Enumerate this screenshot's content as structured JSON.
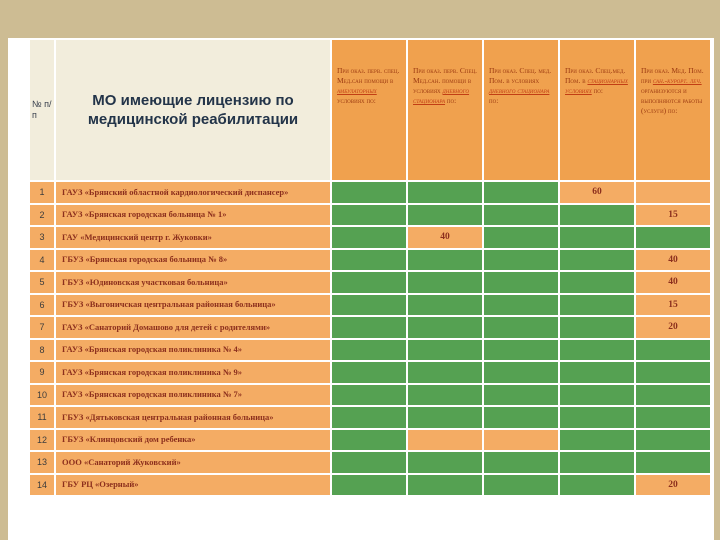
{
  "slide": {
    "num_header": "№ п/п",
    "title": "МО имеющие лицензию по медицинской реабилитации"
  },
  "colors": {
    "page_background": "#cdbc93",
    "panel": "#ffffff",
    "header_cream": "#f2eddc",
    "header_orange": "#f0a14e",
    "cell_orange": "#f4ac64",
    "cell_green": "#55a152",
    "header_text": "#9b3910",
    "header_link_text": "#c23e14",
    "org_text": "#8c2f1d",
    "title_text": "#233449"
  },
  "table": {
    "headers": [
      {
        "segments": [
          {
            "text": "При оказ. перв. спец. Мед.сан помощи в ",
            "link": false
          },
          {
            "text": "амбулаторных",
            "link": true
          },
          {
            "text": " условиях по:",
            "link": false
          }
        ]
      },
      {
        "segments": [
          {
            "text": "При оказ. перв. Спец. Мед.сан. помощи в условиях ",
            "link": false
          },
          {
            "text": "дневного стационара",
            "link": true
          },
          {
            "text": " по:",
            "link": false
          }
        ]
      },
      {
        "segments": [
          {
            "text": "При оказ. Спец. мед. Пом. в условиях ",
            "link": false
          },
          {
            "text": "дневного стационара",
            "link": true
          },
          {
            "text": " по:",
            "link": false
          }
        ]
      },
      {
        "segments": [
          {
            "text": "При оказ. Спец.мед. Пом. в ",
            "link": false
          },
          {
            "text": "стационарных условиях",
            "link": true
          },
          {
            "text": " по:",
            "link": false
          }
        ]
      },
      {
        "segments": [
          {
            "text": "При оказ. Мед. Пом. при ",
            "link": false
          },
          {
            "text": "сан.-курорт. леч.",
            "link": true
          },
          {
            "text": " организуются и выполняются работы (услуги) по:",
            "link": false
          }
        ]
      }
    ],
    "rows": [
      {
        "num": "1",
        "name": "ГАУЗ «Брянский областной кардиологический диспансер»",
        "cells": [
          {
            "bg": "green"
          },
          {
            "bg": "green"
          },
          {
            "bg": "green"
          },
          {
            "bg": "orange",
            "value": "60"
          },
          {
            "bg": "orange"
          }
        ]
      },
      {
        "num": "2",
        "name": "ГАУЗ «Брянская городская больница № 1»",
        "cells": [
          {
            "bg": "green"
          },
          {
            "bg": "green"
          },
          {
            "bg": "green"
          },
          {
            "bg": "green"
          },
          {
            "bg": "orange",
            "value": "15"
          }
        ]
      },
      {
        "num": "3",
        "name": "ГАУ «Медицинский центр г. Жуковки»",
        "cells": [
          {
            "bg": "green"
          },
          {
            "bg": "orange",
            "value": "40"
          },
          {
            "bg": "green"
          },
          {
            "bg": "green"
          },
          {
            "bg": "green"
          }
        ]
      },
      {
        "num": "4",
        "name": "ГБУЗ «Брянская городская больница № 8»",
        "cells": [
          {
            "bg": "green"
          },
          {
            "bg": "green"
          },
          {
            "bg": "green"
          },
          {
            "bg": "green"
          },
          {
            "bg": "orange",
            "value": "40"
          }
        ]
      },
      {
        "num": "5",
        "name": "ГБУЗ «Юдиновская участковая больница»",
        "cells": [
          {
            "bg": "green"
          },
          {
            "bg": "green"
          },
          {
            "bg": "green"
          },
          {
            "bg": "green"
          },
          {
            "bg": "orange",
            "value": "40"
          }
        ]
      },
      {
        "num": "6",
        "name": "ГБУЗ «Выгоничская центральная районная больница»",
        "cells": [
          {
            "bg": "green"
          },
          {
            "bg": "green"
          },
          {
            "bg": "green"
          },
          {
            "bg": "green"
          },
          {
            "bg": "orange",
            "value": "15"
          }
        ]
      },
      {
        "num": "7",
        "name": "ГАУЗ «Санаторий Домашово для детей с родителями»",
        "cells": [
          {
            "bg": "green"
          },
          {
            "bg": "green"
          },
          {
            "bg": "green"
          },
          {
            "bg": "green"
          },
          {
            "bg": "orange",
            "value": "20"
          }
        ]
      },
      {
        "num": "8",
        "name": "ГАУЗ «Брянская городская поликлиника № 4»",
        "cells": [
          {
            "bg": "green"
          },
          {
            "bg": "green"
          },
          {
            "bg": "green"
          },
          {
            "bg": "green"
          },
          {
            "bg": "green"
          }
        ]
      },
      {
        "num": "9",
        "name": "ГАУЗ «Брянская городская поликлиника № 9»",
        "cells": [
          {
            "bg": "green"
          },
          {
            "bg": "green"
          },
          {
            "bg": "green"
          },
          {
            "bg": "green"
          },
          {
            "bg": "green"
          }
        ]
      },
      {
        "num": "10",
        "name": "ГАУЗ «Брянская городская поликлиника № 7»",
        "cells": [
          {
            "bg": "green"
          },
          {
            "bg": "green"
          },
          {
            "bg": "green"
          },
          {
            "bg": "green"
          },
          {
            "bg": "green"
          }
        ]
      },
      {
        "num": "11",
        "name": "ГБУЗ «Дятьковская центральная районная больница»",
        "cells": [
          {
            "bg": "green"
          },
          {
            "bg": "green"
          },
          {
            "bg": "green"
          },
          {
            "bg": "green"
          },
          {
            "bg": "green"
          }
        ]
      },
      {
        "num": "12",
        "name": "ГБУЗ «Клинцовский дом ребенка»",
        "cells": [
          {
            "bg": "green"
          },
          {
            "bg": "orange"
          },
          {
            "bg": "orange"
          },
          {
            "bg": "green"
          },
          {
            "bg": "green"
          }
        ]
      },
      {
        "num": "13",
        "name": "ООО «Санаторий Жуковский»",
        "cells": [
          {
            "bg": "green"
          },
          {
            "bg": "green"
          },
          {
            "bg": "green"
          },
          {
            "bg": "green"
          },
          {
            "bg": "green"
          }
        ]
      },
      {
        "num": "14",
        "name": "ГБУ РЦ «Озерный»",
        "cells": [
          {
            "bg": "green"
          },
          {
            "bg": "green"
          },
          {
            "bg": "green"
          },
          {
            "bg": "green"
          },
          {
            "bg": "orange",
            "value": "20"
          }
        ]
      }
    ]
  }
}
